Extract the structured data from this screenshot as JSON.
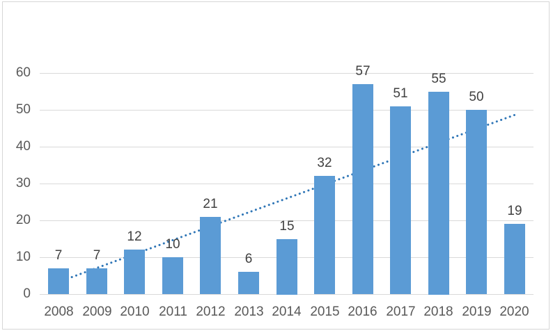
{
  "chart_data": {
    "type": "bar",
    "title": "",
    "xlabel": "",
    "ylabel": "",
    "categories": [
      "2008",
      "2009",
      "2010",
      "2011",
      "2012",
      "2013",
      "2014",
      "2015",
      "2016",
      "2017",
      "2018",
      "2019",
      "2020"
    ],
    "values": [
      7,
      7,
      12,
      10,
      21,
      6,
      15,
      32,
      57,
      51,
      55,
      50,
      19
    ],
    "data_labels_shown": true,
    "ylim": [
      0,
      60
    ],
    "ytick_step": 10,
    "yticks": [
      0,
      10,
      20,
      30,
      40,
      50,
      60
    ],
    "grid": true,
    "legend": "none",
    "colors": {
      "bar_fill": "#5B9BD5",
      "trendline": "#2E75B6",
      "gridline": "#D9D9D9",
      "axis_text": "#595959",
      "data_label_text": "#404040",
      "frame_border": "#D6D6D6"
    },
    "trendline": {
      "type": "linear",
      "style": "dotted",
      "start_value": 3.3,
      "end_value": 48.6,
      "drawn_behind_bars": true
    }
  }
}
